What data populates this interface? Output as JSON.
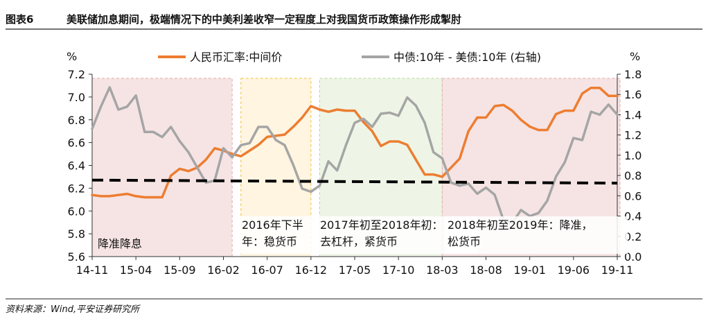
{
  "header": {
    "figure_label": "图表6",
    "title": "美联储加息期间，极端情况下的中美利差收窄一定程度上对我国货币政策操作形成掣肘"
  },
  "footer": {
    "source": "资料来源：Wind,平安证券研究所"
  },
  "chart_data": {
    "type": "line",
    "left_unit": "%",
    "right_unit": "%",
    "y_left_lim": [
      5.6,
      7.2
    ],
    "y_left_ticks": [
      "5.6",
      "5.8",
      "6.0",
      "6.2",
      "6.4",
      "6.6",
      "6.8",
      "7.0",
      "7.2"
    ],
    "y_right_lim": [
      0.0,
      1.8
    ],
    "y_right_ticks": [
      "0.0",
      "0.2",
      "0.4",
      "0.6",
      "0.8",
      "1.0",
      "1.2",
      "1.4",
      "1.6",
      "1.8"
    ],
    "x_start": "2014-11",
    "x_end": "2019-11",
    "x_ticks": [
      "14-11",
      "15-04",
      "15-09",
      "16-02",
      "16-07",
      "16-12",
      "17-05",
      "17-10",
      "18-03",
      "18-08",
      "19-01",
      "19-06",
      "19-11"
    ],
    "grid": false,
    "legend_position": "top",
    "series": [
      {
        "name": "人民币汇率:中间价",
        "axis": "left",
        "color": "#ed7d31",
        "x": [
          "2014-11",
          "2014-12",
          "2015-01",
          "2015-02",
          "2015-03",
          "2015-04",
          "2015-05",
          "2015-06",
          "2015-07",
          "2015-08",
          "2015-09",
          "2015-10",
          "2015-11",
          "2015-12",
          "2016-01",
          "2016-02",
          "2016-03",
          "2016-04",
          "2016-05",
          "2016-06",
          "2016-07",
          "2016-08",
          "2016-09",
          "2016-10",
          "2016-11",
          "2016-12",
          "2017-01",
          "2017-02",
          "2017-03",
          "2017-04",
          "2017-05",
          "2017-06",
          "2017-07",
          "2017-08",
          "2017-09",
          "2017-10",
          "2017-11",
          "2017-12",
          "2018-01",
          "2018-02",
          "2018-03",
          "2018-04",
          "2018-05",
          "2018-06",
          "2018-07",
          "2018-08",
          "2018-09",
          "2018-10",
          "2018-11",
          "2018-12",
          "2019-01",
          "2019-02",
          "2019-03",
          "2019-04",
          "2019-05",
          "2019-06",
          "2019-07",
          "2019-08",
          "2019-09",
          "2019-10",
          "2019-11"
        ],
        "values": [
          6.14,
          6.13,
          6.13,
          6.14,
          6.15,
          6.13,
          6.12,
          6.12,
          6.12,
          6.31,
          6.37,
          6.35,
          6.38,
          6.45,
          6.55,
          6.53,
          6.5,
          6.48,
          6.53,
          6.58,
          6.65,
          6.66,
          6.67,
          6.74,
          6.82,
          6.92,
          6.89,
          6.87,
          6.89,
          6.88,
          6.88,
          6.78,
          6.7,
          6.57,
          6.61,
          6.61,
          6.58,
          6.45,
          6.32,
          6.32,
          6.3,
          6.38,
          6.46,
          6.7,
          6.82,
          6.82,
          6.92,
          6.93,
          6.88,
          6.8,
          6.74,
          6.71,
          6.71,
          6.85,
          6.88,
          6.88,
          7.03,
          7.08,
          7.08,
          7.01,
          7.01
        ]
      },
      {
        "name": "中债:10年 - 美债:10年 (右轴)",
        "axis": "right",
        "color": "#a5a5a5",
        "x": [
          "2014-11",
          "2014-12",
          "2015-01",
          "2015-02",
          "2015-03",
          "2015-04",
          "2015-05",
          "2015-06",
          "2015-07",
          "2015-08",
          "2015-09",
          "2015-10",
          "2015-11",
          "2015-12",
          "2016-01",
          "2016-02",
          "2016-03",
          "2016-04",
          "2016-05",
          "2016-06",
          "2016-07",
          "2016-08",
          "2016-09",
          "2016-10",
          "2016-11",
          "2016-12",
          "2017-01",
          "2017-02",
          "2017-03",
          "2017-04",
          "2017-05",
          "2017-06",
          "2017-07",
          "2017-08",
          "2017-09",
          "2017-10",
          "2017-11",
          "2017-12",
          "2018-01",
          "2018-02",
          "2018-03",
          "2018-04",
          "2018-05",
          "2018-06",
          "2018-07",
          "2018-08",
          "2018-09",
          "2018-10",
          "2018-11",
          "2018-12",
          "2019-01",
          "2019-02",
          "2019-03",
          "2019-04",
          "2019-05",
          "2019-06",
          "2019-07",
          "2019-08",
          "2019-09",
          "2019-10",
          "2019-11"
        ],
        "values": [
          1.26,
          1.48,
          1.67,
          1.45,
          1.48,
          1.59,
          1.23,
          1.23,
          1.18,
          1.28,
          1.14,
          1.03,
          0.88,
          0.73,
          0.75,
          1.07,
          0.98,
          1.1,
          1.12,
          1.28,
          1.28,
          1.15,
          1.1,
          0.9,
          0.67,
          0.64,
          0.7,
          0.94,
          0.85,
          1.1,
          1.32,
          1.36,
          1.28,
          1.41,
          1.42,
          1.39,
          1.57,
          1.49,
          1.32,
          1.03,
          0.97,
          0.73,
          0.7,
          0.72,
          0.62,
          0.68,
          0.61,
          0.36,
          0.33,
          0.46,
          0.4,
          0.43,
          0.55,
          0.79,
          0.93,
          1.17,
          1.15,
          1.43,
          1.4,
          1.5,
          1.4
        ]
      },
      {
        "name": "",
        "axis": "right",
        "color": "#000000",
        "style": "dashed",
        "x": [
          "2014-11",
          "2019-11"
        ],
        "values": [
          0.755,
          0.725
        ]
      }
    ],
    "regions": [
      {
        "label": "降准降息",
        "x_start": "2014-11",
        "x_end": "2016-03",
        "fill": "#f6e4e4",
        "border": "#e2a8a8"
      },
      {
        "label": "2016年下半年：稳货币",
        "x_start": "2016-04",
        "x_end": "2016-12",
        "fill": "#fff5e1",
        "border": "#f0c040"
      },
      {
        "label": "2017年初至2018年初：去杠杆，紧货币",
        "x_start": "2017-01",
        "x_end": "2018-03",
        "fill": "#eef5e6",
        "border": "#b9d59e"
      },
      {
        "label": "2018年初至2019年：降准，松货币",
        "x_start": "2018-03",
        "x_end": "2019-12",
        "fill": "#f6e4e4",
        "border": "#e2a8a8"
      }
    ]
  }
}
